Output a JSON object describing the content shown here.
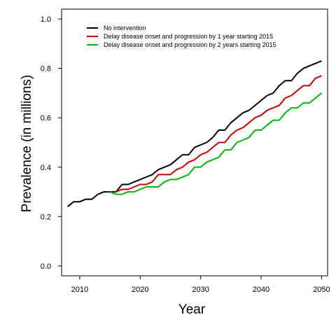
{
  "chart_data": {
    "type": "line",
    "xlabel": "Year",
    "ylabel": "Prevalence (in millions)",
    "xlim": [
      2007,
      2051
    ],
    "ylim": [
      -0.04,
      1.04
    ],
    "xticks": [
      2010,
      2020,
      2030,
      2040,
      2050
    ],
    "yticks": [
      0.0,
      0.2,
      0.4,
      0.6,
      0.8,
      1.0
    ],
    "ytick_labels": [
      "0.0",
      "0.2",
      "0.4",
      "0.6",
      "0.8",
      "1.0"
    ],
    "grid": false,
    "legend_position": "top-left",
    "series": [
      {
        "name": "No intervention",
        "color": "#000000",
        "x": [
          2008,
          2009,
          2010,
          2011,
          2012,
          2013,
          2014,
          2015,
          2016,
          2017,
          2018,
          2019,
          2020,
          2021,
          2022,
          2023,
          2024,
          2025,
          2026,
          2027,
          2028,
          2029,
          2030,
          2031,
          2032,
          2033,
          2034,
          2035,
          2036,
          2037,
          2038,
          2039,
          2040,
          2041,
          2042,
          2043,
          2044,
          2045,
          2046,
          2047,
          2048,
          2049,
          2050
        ],
        "y": [
          0.24,
          0.26,
          0.26,
          0.27,
          0.27,
          0.29,
          0.3,
          0.3,
          0.3,
          0.33,
          0.33,
          0.34,
          0.35,
          0.36,
          0.37,
          0.39,
          0.4,
          0.41,
          0.43,
          0.45,
          0.45,
          0.48,
          0.49,
          0.5,
          0.52,
          0.55,
          0.55,
          0.58,
          0.6,
          0.62,
          0.63,
          0.65,
          0.67,
          0.69,
          0.7,
          0.73,
          0.75,
          0.75,
          0.78,
          0.8,
          0.81,
          0.82,
          0.83
        ]
      },
      {
        "name": "Delay disease onset and progression by 1 year starting 2015",
        "color": "#cc0000",
        "x": [
          2016,
          2017,
          2018,
          2019,
          2020,
          2021,
          2022,
          2023,
          2024,
          2025,
          2026,
          2027,
          2028,
          2029,
          2030,
          2031,
          2032,
          2033,
          2034,
          2035,
          2036,
          2037,
          2038,
          2039,
          2040,
          2041,
          2042,
          2043,
          2044,
          2045,
          2046,
          2047,
          2048,
          2049,
          2050
        ],
        "y": [
          0.3,
          0.31,
          0.31,
          0.32,
          0.33,
          0.33,
          0.34,
          0.37,
          0.37,
          0.37,
          0.39,
          0.4,
          0.42,
          0.43,
          0.45,
          0.46,
          0.48,
          0.5,
          0.5,
          0.53,
          0.55,
          0.56,
          0.58,
          0.6,
          0.61,
          0.63,
          0.64,
          0.65,
          0.68,
          0.69,
          0.71,
          0.73,
          0.73,
          0.76,
          0.77
        ]
      },
      {
        "name": "Delay disease onset and progression by 2 years starting 2015",
        "color": "#00bb00",
        "x": [
          2015,
          2016,
          2017,
          2018,
          2019,
          2020,
          2021,
          2022,
          2023,
          2024,
          2025,
          2026,
          2027,
          2028,
          2029,
          2030,
          2031,
          2032,
          2033,
          2034,
          2035,
          2036,
          2037,
          2038,
          2039,
          2040,
          2041,
          2042,
          2043,
          2044,
          2045,
          2046,
          2047,
          2048,
          2049,
          2050
        ],
        "y": [
          0.3,
          0.29,
          0.29,
          0.3,
          0.3,
          0.31,
          0.32,
          0.32,
          0.32,
          0.34,
          0.35,
          0.35,
          0.36,
          0.37,
          0.4,
          0.4,
          0.42,
          0.43,
          0.44,
          0.47,
          0.47,
          0.5,
          0.51,
          0.52,
          0.55,
          0.55,
          0.57,
          0.59,
          0.59,
          0.62,
          0.64,
          0.64,
          0.66,
          0.66,
          0.68,
          0.7
        ]
      }
    ]
  }
}
